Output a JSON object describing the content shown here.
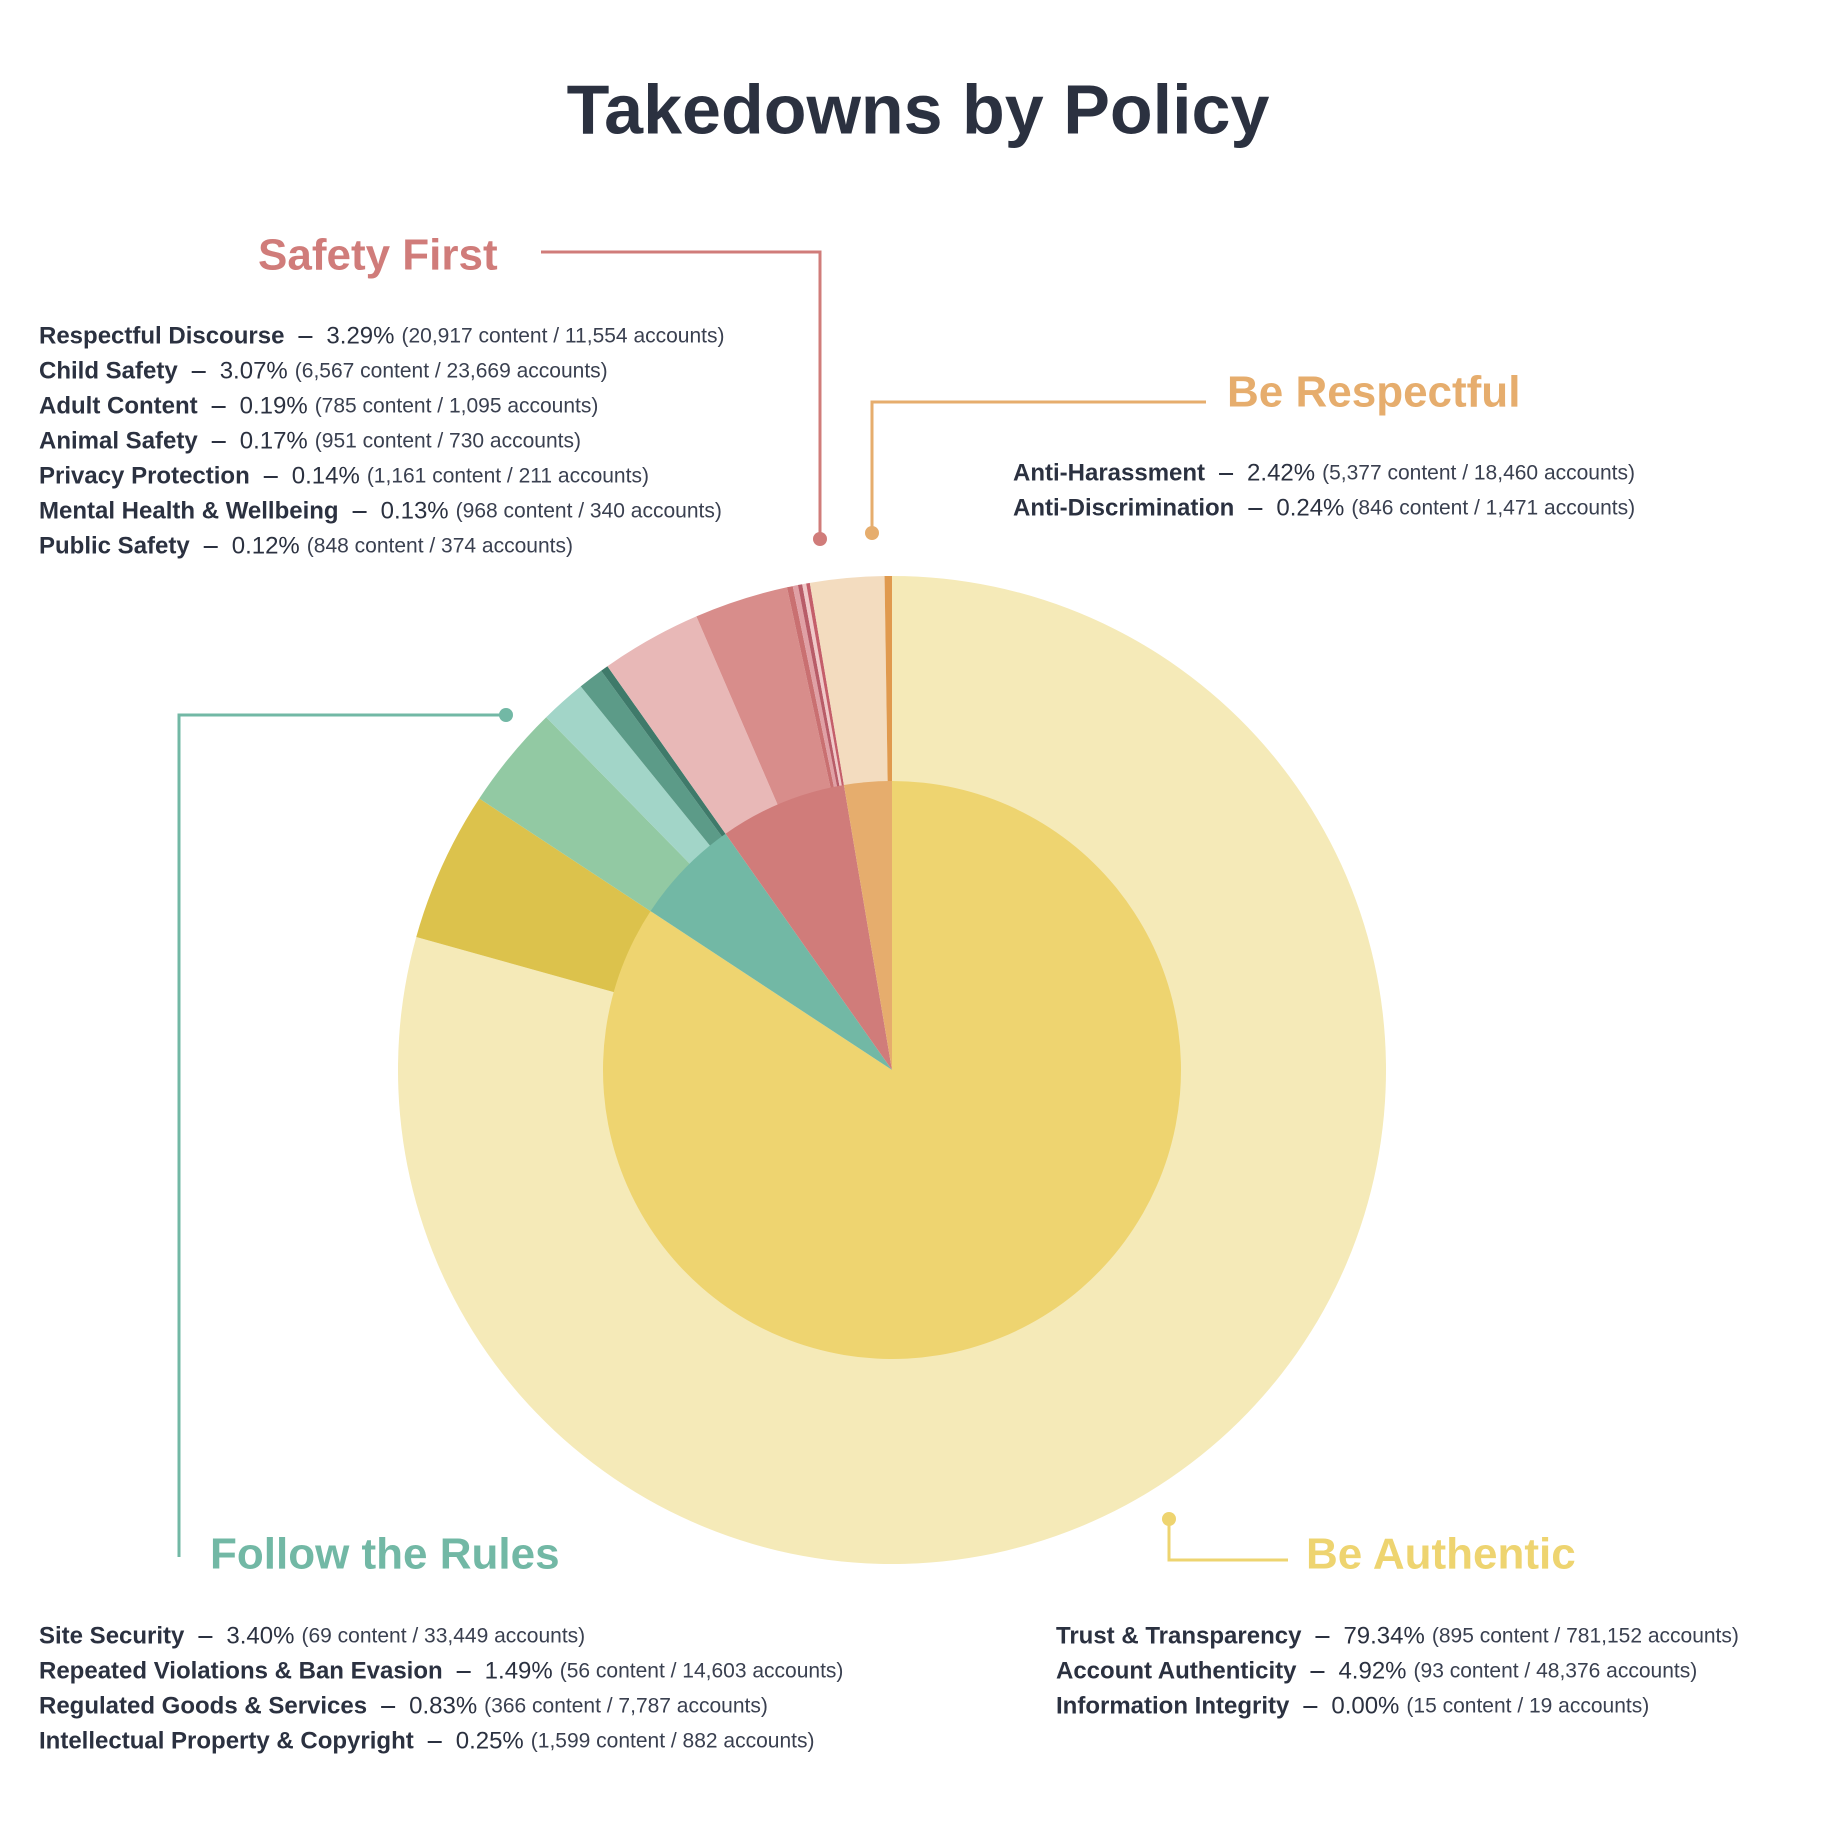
{
  "chart_data": {
    "type": "sunburst",
    "title": "Takedowns by Policy",
    "groups": [
      {
        "name": "Be Authentic",
        "color": "#eed470",
        "children": [
          {
            "name": "Trust & Transparency",
            "value": 79.34,
            "value_label": "79.34%",
            "detail": "(895 content / 781,152 accounts)",
            "color": "#f5eab8"
          },
          {
            "name": "Account Authenticity",
            "value": 4.92,
            "value_label": "4.92%",
            "detail": "(93 content / 48,376 accounts)",
            "color": "#dcc24c"
          },
          {
            "name": "Information Integrity",
            "value": 0,
            "value_label": "0.00%",
            "detail": "(15 content / 19 accounts)",
            "color": "#c9a92c"
          }
        ]
      },
      {
        "name": "Follow the Rules",
        "color": "#72b8a5",
        "children": [
          {
            "name": "Site Security",
            "value": 3.4,
            "value_label": "3.40%",
            "detail": "(69 content / 33,449 accounts)",
            "color": "#92c9a3"
          },
          {
            "name": "Repeated Violations & Ban Evasion",
            "value": 1.49,
            "value_label": "1.49%",
            "detail": "(56 content / 14,603 accounts)",
            "color": "#a2d5c8"
          },
          {
            "name": "Regulated Goods & Services",
            "value": 0.83,
            "value_label": "0.83%",
            "detail": "(366 content / 7,787 accounts)",
            "color": "#5c9b88"
          },
          {
            "name": "Intellectual Property & Copyright",
            "value": 0.25,
            "value_label": "0.25%",
            "detail": "(1,599 content / 882 accounts)",
            "color": "#3f7a6a"
          }
        ]
      },
      {
        "name": "Safety First",
        "color": "#d07c7a",
        "children": [
          {
            "name": "Respectful Discourse",
            "value": 3.29,
            "value_label": "3.29%",
            "detail": "(20,917 content / 11,554 accounts)",
            "color": "#e8b8b7"
          },
          {
            "name": "Child Safety",
            "value": 3.07,
            "value_label": "3.07%",
            "detail": "(6,567 content / 23,669 accounts)",
            "color": "#d88d8b"
          },
          {
            "name": "Adult Content",
            "value": 0.19,
            "value_label": "0.19%",
            "detail": "(785 content / 1,095 accounts)",
            "color": "#c97071"
          },
          {
            "name": "Animal Safety",
            "value": 0.17,
            "value_label": "0.17%",
            "detail": "(951 content / 730 accounts)",
            "color": "#e0a0a5"
          },
          {
            "name": "Privacy Protection",
            "value": 0.14,
            "value_label": "0.14%",
            "detail": "(1,161 content / 211 accounts)",
            "color": "#b85c68"
          },
          {
            "name": "Mental Health & Wellbeing",
            "value": 0.13,
            "value_label": "0.13%",
            "detail": "(968 content / 340 accounts)",
            "color": "#f0c8c8"
          },
          {
            "name": "Public Safety",
            "value": 0.12,
            "value_label": "0.12%",
            "detail": "(848 content / 374 accounts)",
            "color": "#c45e6a"
          }
        ]
      },
      {
        "name": "Be Respectful",
        "color": "#e6ad6d",
        "children": [
          {
            "name": "Anti-Harassment",
            "value": 2.42,
            "value_label": "2.42%",
            "detail": "(5,377 content / 18,460 accounts)",
            "color": "#f3dcbf"
          },
          {
            "name": "Anti-Discrimination",
            "value": 0.24,
            "value_label": "0.24%",
            "detail": "(846 content / 1,471 accounts)",
            "color": "#e09a4e"
          }
        ]
      }
    ]
  }
}
